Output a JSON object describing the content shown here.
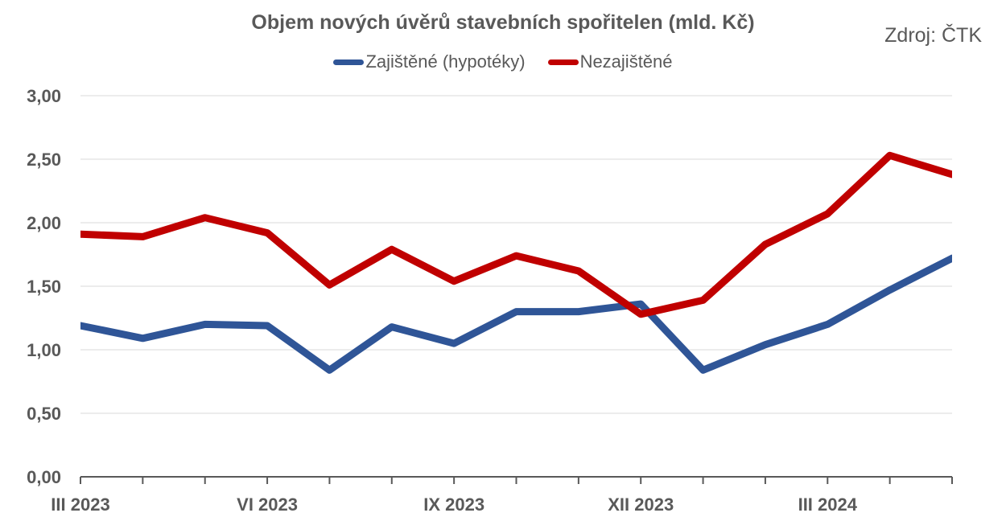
{
  "chart_data": {
    "type": "line",
    "title": "Objem nových úvěrů stavebních spořitelen (mld. Kč)",
    "source": "Zdroj: ČTK",
    "x": [
      "III 2023",
      "IV 2023",
      "V 2023",
      "VI 2023",
      "VII 2023",
      "VIII 2023",
      "IX 2023",
      "X 2023",
      "XI 2023",
      "XII 2023",
      "I 2024",
      "II 2024",
      "III 2024",
      "IV 2024",
      "V 2024"
    ],
    "x_tick_labels": [
      "III 2023",
      "",
      "",
      "VI 2023",
      "",
      "",
      "IX 2023",
      "",
      "",
      "XII 2023",
      "",
      "",
      "III 2024",
      "",
      ""
    ],
    "y_tick_labels": [
      "0,00",
      "0,50",
      "1,00",
      "1,50",
      "2,00",
      "2,50",
      "3,00"
    ],
    "ylim": [
      0,
      3
    ],
    "grid": true,
    "legend_position": "top",
    "series": [
      {
        "name": "Zajištěné (hypotéky)",
        "color": "#2F5597",
        "values": [
          1.19,
          1.09,
          1.2,
          1.19,
          0.84,
          1.18,
          1.05,
          1.3,
          1.3,
          1.36,
          0.84,
          1.04,
          1.2,
          1.47,
          1.72
        ]
      },
      {
        "name": "Nezajištěné",
        "color": "#C00000",
        "values": [
          1.91,
          1.89,
          2.04,
          1.92,
          1.51,
          1.79,
          1.54,
          1.74,
          1.62,
          1.28,
          1.39,
          1.83,
          2.07,
          2.53,
          2.38
        ]
      }
    ]
  }
}
